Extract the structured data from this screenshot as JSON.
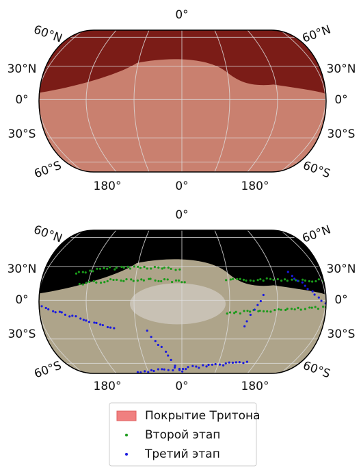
{
  "maps": [
    {
      "top": "0°",
      "left": [
        "60°N",
        "30°N",
        "0°",
        "30°S",
        "60°S"
      ],
      "right": [
        "60°N",
        "30°N",
        "0°",
        "30°S",
        "60°S"
      ],
      "bottom": [
        "180°",
        "0°",
        "180°"
      ]
    },
    {
      "top": "0°",
      "left": [
        "60°N",
        "30°N",
        "0°",
        "30°S",
        "60°S"
      ],
      "right": [
        "60°N",
        "30°N",
        "0°",
        "30°S",
        "60°S"
      ],
      "bottom": [
        "180°",
        "0°",
        "180°"
      ]
    }
  ],
  "legend": [
    "Покрытие Тритона",
    "Второй этап",
    "Третий этап"
  ]
}
